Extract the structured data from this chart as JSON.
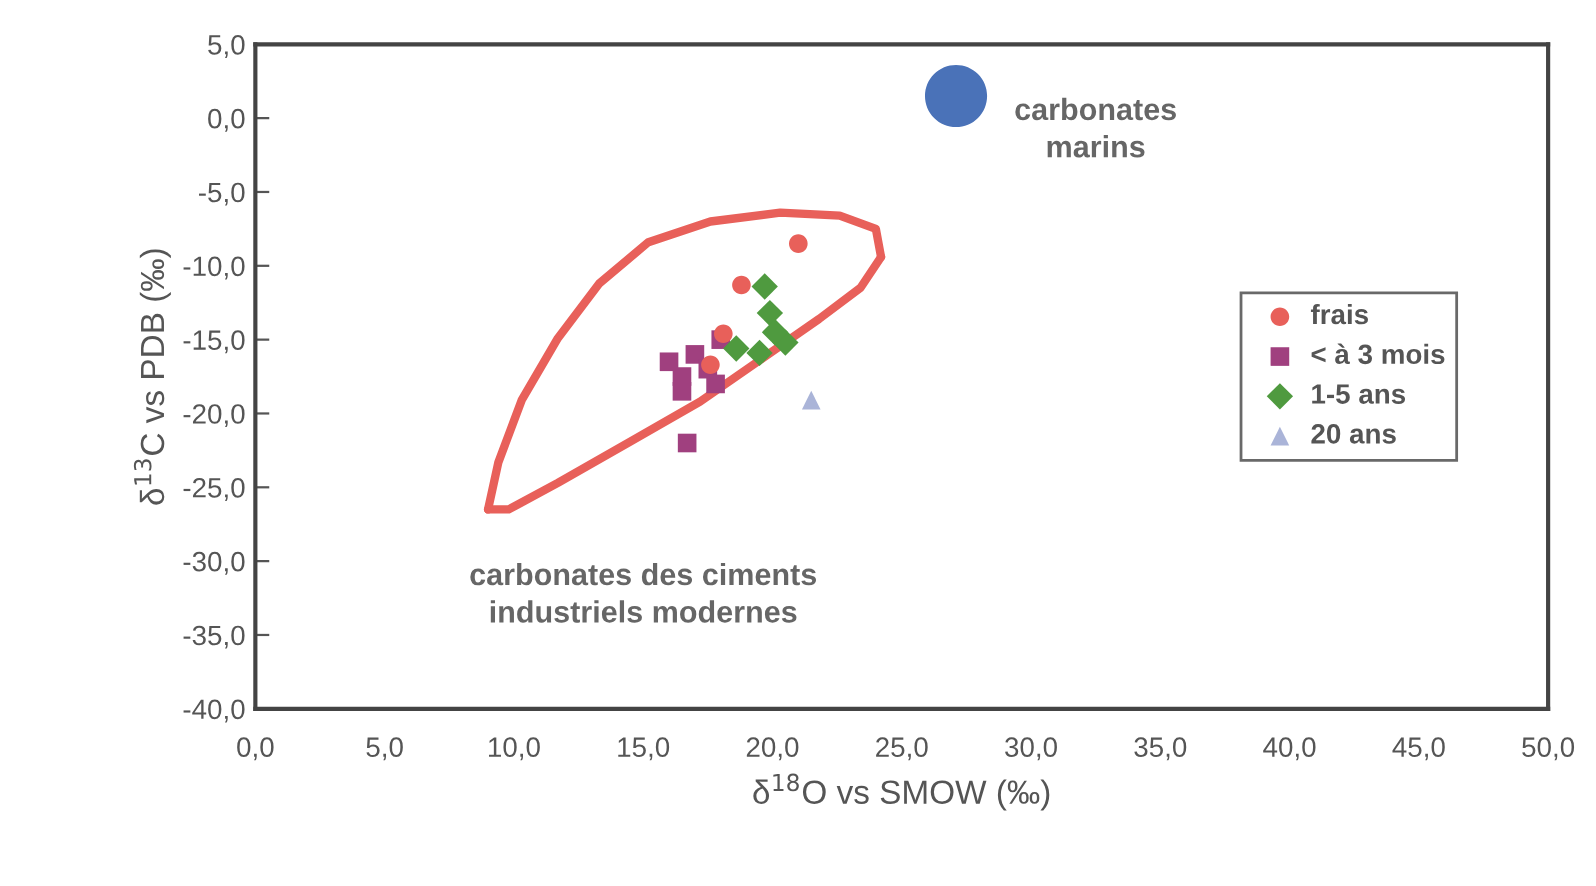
{
  "chart_data": {
    "type": "scatter",
    "xlabel": "δ$^{18}$O vs SMOW (‰)",
    "ylabel": "δ$^{13}$C vs PDB (‰)",
    "xlim": [
      0,
      50
    ],
    "ylim": [
      -40,
      5
    ],
    "xticks": [
      {
        "value": 0,
        "label": "0,0"
      },
      {
        "value": 5,
        "label": "5,0"
      },
      {
        "value": 10,
        "label": "10,0"
      },
      {
        "value": 15,
        "label": "15,0"
      },
      {
        "value": 20,
        "label": "20,0"
      },
      {
        "value": 25,
        "label": "25,0"
      },
      {
        "value": 30,
        "label": "30,0"
      },
      {
        "value": 35,
        "label": "35,0"
      },
      {
        "value": 40,
        "label": "40,0"
      },
      {
        "value": 45,
        "label": "45,0"
      },
      {
        "value": 50,
        "label": "50,0"
      }
    ],
    "yticks": [
      {
        "value": 5,
        "label": "5,0"
      },
      {
        "value": 0,
        "label": "0,0"
      },
      {
        "value": -5,
        "label": "-5,0"
      },
      {
        "value": -10,
        "label": "-10,0"
      },
      {
        "value": -15,
        "label": "-15,0"
      },
      {
        "value": -20,
        "label": "-20,0"
      },
      {
        "value": -25,
        "label": "-25,0"
      },
      {
        "value": -30,
        "label": "-30,0"
      },
      {
        "value": -35,
        "label": "-35,0"
      },
      {
        "value": -40,
        "label": "-40,0"
      }
    ],
    "grid": false,
    "legend": "right",
    "series": [
      {
        "type": "line",
        "color": "#e8605a",
        "marker": "none",
        "x": [
          9.0,
          9.4,
          10.3,
          11.7,
          13.3,
          15.2,
          17.6,
          20.3,
          22.6,
          24.0,
          24.2
        ],
        "values": [
          -26.5,
          -23.3,
          -19.1,
          -14.9,
          -11.2,
          -8.4,
          -7.0,
          -6.4,
          -6.6,
          -7.5,
          -9.4
        ]
      },
      {
        "type": "line",
        "color": "#e8605a",
        "marker": "none",
        "x": [
          9.0,
          9.8,
          11.7,
          14.5,
          17.2,
          19.5,
          21.8,
          23.4,
          24.2
        ],
        "values": [
          -26.5,
          -26.5,
          -24.7,
          -21.9,
          -19.2,
          -16.4,
          -13.6,
          -11.5,
          -9.4
        ]
      },
      {
        "type": "scatter",
        "color": "#4a72b8",
        "marker": "circle",
        "x": [
          27.1
        ],
        "values": [
          1.5
        ]
      },
      {
        "name": "frais",
        "color": "#e8605a",
        "marker": "circle",
        "x": [
          21.0,
          18.8,
          18.1,
          17.6
        ],
        "values": [
          -8.5,
          -11.3,
          -14.6,
          -16.7
        ]
      },
      {
        "name": "< à 3 mois",
        "color": "#a0407f",
        "marker": "square",
        "x": [
          16.0,
          16.5,
          17.0,
          17.5,
          18.0,
          16.5,
          17.8,
          16.7
        ],
        "values": [
          -16.5,
          -17.5,
          -16.0,
          -17.0,
          -15.0,
          -18.5,
          -18.0,
          -22.0
        ]
      },
      {
        "name": "1-5 ans",
        "color": "#4f9a3f",
        "marker": "diamond",
        "x": [
          19.7,
          19.9,
          20.5,
          19.5,
          18.6,
          20.1
        ],
        "values": [
          -11.4,
          -13.2,
          -15.2,
          -15.9,
          -15.6,
          -14.5
        ]
      },
      {
        "name": "20 ans",
        "color": "#aab4d8",
        "marker": "triangle",
        "x": [
          21.5
        ],
        "values": [
          -19.1
        ]
      }
    ],
    "annotations": [
      "carbonates\nmarins",
      "carbonates des ciments\nindustriels modernes"
    ]
  }
}
